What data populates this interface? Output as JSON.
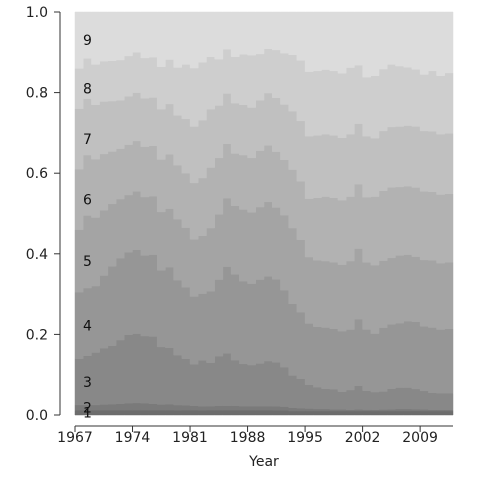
{
  "chart_data": {
    "type": "area",
    "stacked": true,
    "normalized": true,
    "xlabel": "Year",
    "ylabel": "",
    "xlim": [
      1967,
      2013
    ],
    "ylim": [
      0,
      1
    ],
    "xticks": [
      "1967",
      "1974",
      "1981",
      "1988",
      "1995",
      "2002",
      "2009"
    ],
    "yticks": [
      "0.0",
      "0.2",
      "0.4",
      "0.6",
      "0.8",
      "1.0"
    ],
    "grid": false,
    "legend": "inline-labels",
    "series_colors": [
      "#6d6d6d",
      "#7a7a7a",
      "#888888",
      "#969696",
      "#a4a4a4",
      "#b2b2b2",
      "#c0c0c0",
      "#cecece",
      "#dcdcdc",
      "#e6e6e6"
    ],
    "x": [
      1967,
      1968,
      1969,
      1970,
      1971,
      1972,
      1973,
      1974,
      1975,
      1976,
      1977,
      1978,
      1979,
      1980,
      1981,
      1982,
      1983,
      1984,
      1985,
      1986,
      1987,
      1988,
      1989,
      1990,
      1991,
      1992,
      1993,
      1994,
      1995,
      1996,
      1997,
      1998,
      1999,
      2000,
      2001,
      2002,
      2003,
      2004,
      2005,
      2006,
      2007,
      2008,
      2009,
      2010,
      2011,
      2012
    ],
    "series": [
      {
        "name": "1",
        "values": [
          0.012,
          0.012,
          0.012,
          0.012,
          0.012,
          0.012,
          0.012,
          0.012,
          0.012,
          0.012,
          0.012,
          0.012,
          0.012,
          0.012,
          0.012,
          0.012,
          0.012,
          0.012,
          0.012,
          0.012,
          0.012,
          0.012,
          0.012,
          0.012,
          0.012,
          0.012,
          0.01,
          0.01,
          0.01,
          0.01,
          0.01,
          0.01,
          0.01,
          0.01,
          0.01,
          0.01,
          0.01,
          0.01,
          0.01,
          0.01,
          0.01,
          0.01,
          0.01,
          0.01,
          0.01,
          0.01
        ]
      },
      {
        "name": "2",
        "values": [
          0.013,
          0.013,
          0.013,
          0.014,
          0.015,
          0.016,
          0.017,
          0.018,
          0.017,
          0.016,
          0.014,
          0.015,
          0.013,
          0.012,
          0.011,
          0.01,
          0.01,
          0.011,
          0.011,
          0.011,
          0.01,
          0.01,
          0.01,
          0.01,
          0.01,
          0.009,
          0.008,
          0.007,
          0.006,
          0.005,
          0.005,
          0.004,
          0.004,
          0.003,
          0.004,
          0.003,
          0.003,
          0.004,
          0.004,
          0.005,
          0.005,
          0.004,
          0.004,
          0.003,
          0.003,
          0.003
        ]
      },
      {
        "name": "3",
        "values": [
          0.115,
          0.122,
          0.13,
          0.14,
          0.145,
          0.158,
          0.17,
          0.172,
          0.167,
          0.167,
          0.143,
          0.14,
          0.125,
          0.116,
          0.103,
          0.115,
          0.108,
          0.123,
          0.13,
          0.113,
          0.105,
          0.102,
          0.106,
          0.112,
          0.11,
          0.1,
          0.08,
          0.073,
          0.059,
          0.054,
          0.05,
          0.05,
          0.044,
          0.049,
          0.059,
          0.047,
          0.044,
          0.045,
          0.051,
          0.053,
          0.053,
          0.05,
          0.046,
          0.042,
          0.041,
          0.041
        ]
      },
      {
        "name": "4",
        "values": [
          0.165,
          0.168,
          0.165,
          0.18,
          0.197,
          0.203,
          0.205,
          0.208,
          0.2,
          0.203,
          0.19,
          0.2,
          0.188,
          0.177,
          0.168,
          0.167,
          0.177,
          0.19,
          0.215,
          0.213,
          0.205,
          0.202,
          0.208,
          0.21,
          0.208,
          0.195,
          0.178,
          0.165,
          0.152,
          0.15,
          0.152,
          0.15,
          0.15,
          0.15,
          0.165,
          0.15,
          0.145,
          0.16,
          0.16,
          0.16,
          0.165,
          0.165,
          0.16,
          0.162,
          0.158,
          0.16
        ]
      },
      {
        "name": "5",
        "values": [
          0.155,
          0.18,
          0.17,
          0.162,
          0.155,
          0.147,
          0.142,
          0.145,
          0.145,
          0.145,
          0.145,
          0.145,
          0.153,
          0.148,
          0.142,
          0.145,
          0.157,
          0.162,
          0.17,
          0.17,
          0.178,
          0.177,
          0.18,
          0.185,
          0.18,
          0.19,
          0.188,
          0.18,
          0.165,
          0.165,
          0.165,
          0.165,
          0.165,
          0.17,
          0.175,
          0.165,
          0.17,
          0.168,
          0.165,
          0.168,
          0.165,
          0.16,
          0.165,
          0.167,
          0.165,
          0.165
        ]
      },
      {
        "name": "6",
        "values": [
          0.15,
          0.15,
          0.145,
          0.14,
          0.13,
          0.125,
          0.125,
          0.125,
          0.125,
          0.125,
          0.13,
          0.135,
          0.135,
          0.135,
          0.14,
          0.145,
          0.15,
          0.14,
          0.135,
          0.13,
          0.135,
          0.135,
          0.14,
          0.14,
          0.14,
          0.14,
          0.145,
          0.145,
          0.145,
          0.155,
          0.16,
          0.16,
          0.16,
          0.16,
          0.16,
          0.16,
          0.17,
          0.175,
          0.175,
          0.17,
          0.17,
          0.17,
          0.17,
          0.17,
          0.17,
          0.17
        ]
      },
      {
        "name": "7",
        "values": [
          0.15,
          0.14,
          0.135,
          0.13,
          0.125,
          0.12,
          0.12,
          0.12,
          0.12,
          0.12,
          0.125,
          0.125,
          0.125,
          0.135,
          0.14,
          0.145,
          0.145,
          0.13,
          0.125,
          0.125,
          0.125,
          0.125,
          0.125,
          0.13,
          0.135,
          0.14,
          0.145,
          0.15,
          0.155,
          0.155,
          0.155,
          0.155,
          0.155,
          0.155,
          0.15,
          0.15,
          0.145,
          0.15,
          0.15,
          0.15,
          0.15,
          0.15,
          0.15,
          0.15,
          0.15,
          0.15
        ]
      },
      {
        "name": "8",
        "values": [
          0.1,
          0.1,
          0.1,
          0.1,
          0.1,
          0.1,
          0.1,
          0.1,
          0.1,
          0.1,
          0.105,
          0.11,
          0.12,
          0.135,
          0.145,
          0.145,
          0.13,
          0.115,
          0.11,
          0.115,
          0.125,
          0.13,
          0.115,
          0.11,
          0.12,
          0.13,
          0.14,
          0.15,
          0.16,
          0.16,
          0.16,
          0.16,
          0.16,
          0.165,
          0.145,
          0.145,
          0.155,
          0.155,
          0.155,
          0.15,
          0.145,
          0.14,
          0.14,
          0.15,
          0.145,
          0.15
        ]
      },
      {
        "name": "9",
        "values": [
          0.14,
          0.115,
          0.13,
          0.122,
          0.121,
          0.119,
          0.109,
          0.1,
          0.114,
          0.112,
          0.136,
          0.118,
          0.139,
          0.13,
          0.139,
          0.126,
          0.111,
          0.117,
          0.092,
          0.111,
          0.105,
          0.107,
          0.104,
          0.091,
          0.095,
          0.104,
          0.106,
          0.12,
          0.148,
          0.146,
          0.143,
          0.146,
          0.152,
          0.138,
          0.132,
          0.16,
          0.158,
          0.143,
          0.13,
          0.134,
          0.137,
          0.141,
          0.155,
          0.146,
          0.158,
          0.151
        ]
      }
    ]
  }
}
